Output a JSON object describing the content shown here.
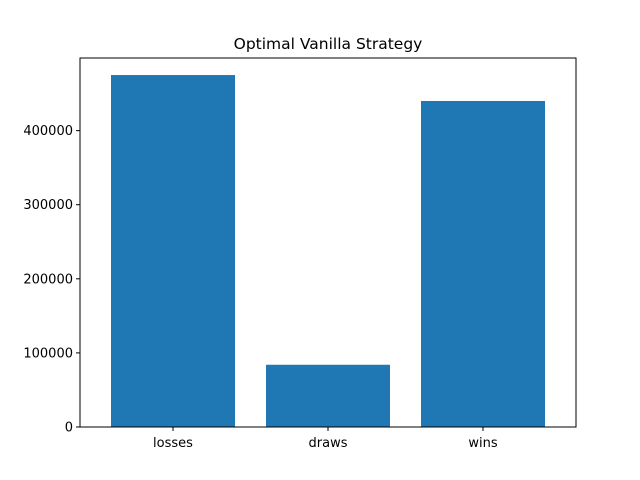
{
  "chart_data": {
    "type": "bar",
    "title": "Optimal Vanilla Strategy",
    "xlabel": "",
    "ylabel": "",
    "categories": [
      "losses",
      "draws",
      "wins"
    ],
    "values": [
      475000,
      84000,
      440000
    ],
    "ylim": [
      0,
      498000
    ],
    "yticks": [
      0,
      100000,
      200000,
      300000,
      400000
    ],
    "ytick_labels": [
      "0",
      "100000",
      "200000",
      "300000",
      "400000"
    ],
    "bar_color": "#1f77b4",
    "grid": false,
    "legend": "none"
  }
}
